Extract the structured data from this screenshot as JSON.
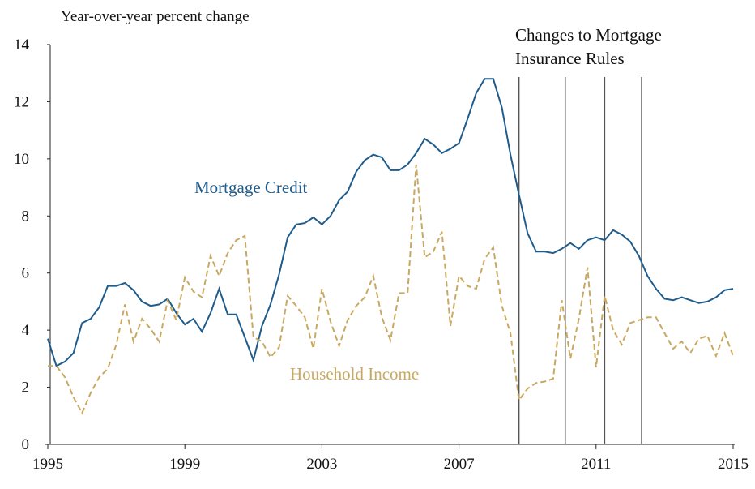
{
  "chart_data": {
    "type": "line",
    "ylabel": "Year-over-year percent change",
    "annotation": [
      "Changes to Mortgage",
      "Insurance Rules"
    ],
    "event_lines": [
      2008.75,
      2010.1,
      2011.25,
      2012.33
    ],
    "x": [
      1995,
      1995.25,
      1995.5,
      1995.75,
      1996,
      1996.25,
      1996.5,
      1996.75,
      1997,
      1997.25,
      1997.5,
      1997.75,
      1998,
      1998.25,
      1998.5,
      1998.75,
      1999,
      1999.25,
      1999.5,
      1999.75,
      2000,
      2000.25,
      2000.5,
      2000.75,
      2001,
      2001.25,
      2001.5,
      2001.75,
      2002,
      2002.25,
      2002.5,
      2002.75,
      2003,
      2003.25,
      2003.5,
      2003.75,
      2004,
      2004.25,
      2004.5,
      2004.75,
      2005,
      2005.25,
      2005.5,
      2005.75,
      2006,
      2006.25,
      2006.5,
      2006.75,
      2007,
      2007.25,
      2007.5,
      2007.75,
      2008,
      2008.25,
      2008.5,
      2008.75,
      2009,
      2009.25,
      2009.5,
      2009.75,
      2010,
      2010.25,
      2010.5,
      2010.75,
      2011,
      2011.25,
      2011.5,
      2011.75,
      2012,
      2012.25,
      2012.5,
      2012.75,
      2013,
      2013.25,
      2013.5,
      2013.75,
      2014,
      2014.25,
      2014.5,
      2014.75,
      2015
    ],
    "series": [
      {
        "name": "Mortgage Credit",
        "color": "#1f5c8b",
        "dash": false,
        "values": [
          3.7,
          2.75,
          2.9,
          3.2,
          4.25,
          4.4,
          4.8,
          5.55,
          5.55,
          5.65,
          5.4,
          5.0,
          4.85,
          4.9,
          5.1,
          4.6,
          4.2,
          4.4,
          3.95,
          4.6,
          5.45,
          4.55,
          4.55,
          3.75,
          2.95,
          4.15,
          4.9,
          5.95,
          7.25,
          7.7,
          7.75,
          7.95,
          7.7,
          8.0,
          8.55,
          8.85,
          9.55,
          9.95,
          10.15,
          10.05,
          9.6,
          9.6,
          9.8,
          10.2,
          10.7,
          10.5,
          10.2,
          10.35,
          10.55,
          11.4,
          12.3,
          12.8,
          12.8,
          11.8,
          10.15,
          8.75,
          7.4,
          6.75,
          6.75,
          6.7,
          6.85,
          7.05,
          6.85,
          7.15,
          7.25,
          7.15,
          7.5,
          7.35,
          7.1,
          6.6,
          5.9,
          5.45,
          5.1,
          5.05,
          5.15,
          5.05,
          4.95,
          5.0,
          5.15,
          5.4,
          5.45
        ]
      },
      {
        "name": "Household Income",
        "color": "#c9a961",
        "dash": true,
        "values": [
          2.75,
          2.75,
          2.35,
          1.65,
          1.1,
          1.8,
          2.35,
          2.65,
          3.5,
          4.9,
          3.6,
          4.4,
          4.05,
          3.6,
          5.05,
          4.35,
          5.85,
          5.35,
          5.15,
          6.6,
          5.9,
          6.7,
          7.15,
          7.3,
          3.75,
          3.6,
          3.05,
          3.4,
          5.2,
          4.85,
          4.45,
          3.35,
          5.45,
          4.3,
          3.45,
          4.35,
          4.85,
          5.15,
          5.9,
          4.45,
          3.65,
          5.3,
          5.3,
          9.8,
          6.55,
          6.75,
          7.45,
          4.15,
          5.9,
          5.55,
          5.45,
          6.5,
          6.9,
          4.85,
          3.9,
          1.55,
          1.95,
          2.15,
          2.2,
          2.3,
          5.05,
          3.0,
          4.4,
          6.2,
          2.7,
          5.2,
          4.0,
          3.5,
          4.25,
          4.35,
          4.45,
          4.45,
          3.9,
          3.35,
          3.6,
          3.2,
          3.7,
          3.8,
          3.1,
          3.9,
          3.1
        ]
      }
    ],
    "xlim": [
      1995,
      2015
    ],
    "xticks": [
      1995,
      1999,
      2003,
      2007,
      2011,
      2015
    ],
    "ylim": [
      0,
      14
    ],
    "yticks": [
      0,
      2,
      4,
      6,
      8,
      10,
      12,
      14
    ]
  }
}
